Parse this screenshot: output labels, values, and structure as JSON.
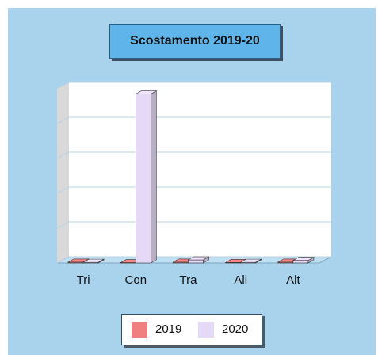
{
  "chart_data": {
    "type": "bar",
    "title": "Scostamento 2019-20",
    "categories": [
      "Tri",
      "Con",
      "Tra",
      "Ali",
      "Alt"
    ],
    "series": [
      {
        "name": "2019",
        "color": "#f08080",
        "values": [
          0.5,
          0.2,
          0.5,
          0.3,
          0.5
        ]
      },
      {
        "name": "2020",
        "color": "#e6d9f7",
        "values": [
          0.4,
          97.0,
          1.8,
          0.4,
          1.5
        ]
      }
    ],
    "ylim": [
      0,
      100
    ],
    "grid": true,
    "legend_position": "bottom"
  }
}
